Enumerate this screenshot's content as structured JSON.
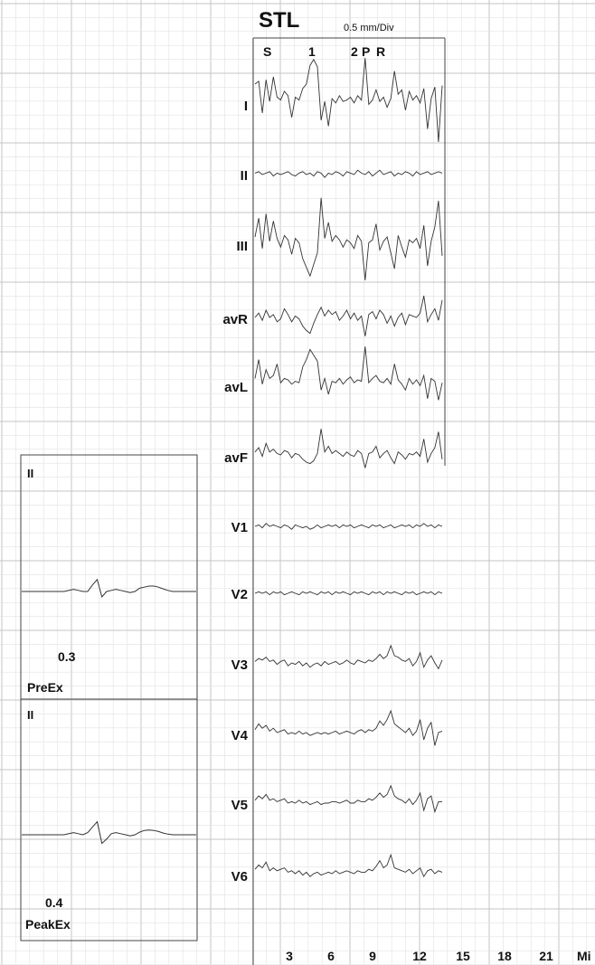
{
  "chart_data": {
    "type": "line",
    "title": "STL",
    "scale_label": "0.5 mm/Div",
    "event_markers": [
      "S",
      "1",
      "2",
      "P",
      "R"
    ],
    "x_ticks": [
      "3",
      "6",
      "9",
      "12",
      "15",
      "18",
      "21"
    ],
    "x_unit": "Mi",
    "xlim": [
      0,
      25.5
    ],
    "leads": [
      {
        "name": "I",
        "values": [
          1.5,
          1.7,
          -0.5,
          1.8,
          0.3,
          2.0,
          0.6,
          0.4,
          1.0,
          0.7,
          -0.8,
          0.6,
          0.4,
          1.2,
          1.5,
          2.8,
          3.2,
          2.7,
          -1.0,
          0.3,
          -1.4,
          0.5,
          0.2,
          0.7,
          0.3,
          0.4,
          0.6,
          0.2,
          0.7,
          0.4,
          3.3,
          0.1,
          0.4,
          1.1,
          0.3,
          0.6,
          -0.1,
          0.5,
          2.4,
          0.8,
          1.1,
          -0.3,
          1.0,
          0.4,
          0.7,
          0.2,
          1.2,
          -1.6,
          0.5,
          1.3,
          -2.5,
          1.4
        ]
      },
      {
        "name": "II",
        "values": [
          0.1,
          0.2,
          0.0,
          0.1,
          0.2,
          -0.1,
          0.1,
          0.0,
          0.1,
          0.2,
          0.0,
          -0.1,
          0.1,
          0.2,
          0.0,
          0.1,
          -0.1,
          0.2,
          0.1,
          -0.2,
          0.1,
          0.0,
          0.2,
          0.1,
          -0.1,
          0.2,
          0.1,
          0.0,
          0.3,
          0.1,
          0.0,
          0.2,
          -0.1,
          0.1,
          0.3,
          0.0,
          0.1,
          0.2,
          -0.1,
          0.1,
          0.0,
          0.2,
          0.1,
          -0.1,
          0.2,
          0.0,
          0.1,
          0.2,
          0.0,
          0.1,
          0.2,
          0.1
        ]
      },
      {
        "name": "III",
        "values": [
          0.5,
          1.8,
          -0.3,
          2.1,
          0.2,
          1.6,
          0.4,
          -0.2,
          0.6,
          0.3,
          -0.7,
          0.4,
          0.1,
          -1.0,
          -1.6,
          -2.2,
          -1.4,
          -0.6,
          3.2,
          0.4,
          1.5,
          0.2,
          0.6,
          0.3,
          -0.2,
          0.3,
          0.1,
          -0.3,
          0.6,
          0.2,
          -2.5,
          0.1,
          0.3,
          1.4,
          -0.4,
          0.2,
          0.5,
          -0.6,
          -1.7,
          0.6,
          -0.2,
          -0.9,
          0.3,
          0.1,
          0.4,
          -0.3,
          1.3,
          -1.5,
          0.2,
          1.2,
          3.0,
          -0.8
        ]
      },
      {
        "name": "avR",
        "values": [
          0.0,
          0.3,
          -0.2,
          0.5,
          0.0,
          0.2,
          -0.3,
          -0.1,
          0.6,
          0.2,
          -0.3,
          0.1,
          -0.1,
          -0.6,
          -0.9,
          -1.1,
          -0.4,
          0.2,
          0.7,
          0.1,
          0.5,
          0.2,
          0.4,
          -0.2,
          0.1,
          0.5,
          -0.1,
          0.3,
          -0.2,
          0.1,
          -1.3,
          0.2,
          0.4,
          -0.1,
          0.5,
          0.2,
          -0.4,
          0.1,
          -0.6,
          0.0,
          0.3,
          -0.5,
          0.2,
          0.1,
          0.0,
          0.3,
          1.5,
          -0.3,
          0.2,
          0.6,
          -0.2,
          1.2
        ]
      },
      {
        "name": "avL",
        "values": [
          0.6,
          1.9,
          0.2,
          1.2,
          0.6,
          0.8,
          1.6,
          0.3,
          0.6,
          0.5,
          0.2,
          0.4,
          0.3,
          1.4,
          1.9,
          2.6,
          2.2,
          1.8,
          -0.2,
          0.6,
          -0.5,
          0.4,
          0.3,
          0.6,
          0.2,
          0.5,
          0.7,
          0.3,
          0.5,
          0.4,
          2.8,
          0.3,
          0.6,
          0.8,
          0.4,
          0.3,
          0.6,
          0.2,
          1.6,
          0.5,
          0.2,
          -0.2,
          0.6,
          0.2,
          0.5,
          0.1,
          0.8,
          -0.8,
          0.6,
          0.4,
          -0.9,
          0.3
        ]
      },
      {
        "name": "avF",
        "values": [
          0.2,
          0.5,
          -0.1,
          0.8,
          0.2,
          0.4,
          0.1,
          0.0,
          0.3,
          0.2,
          -0.2,
          0.1,
          0.0,
          -0.3,
          -0.5,
          -0.6,
          -0.4,
          0.1,
          1.8,
          0.2,
          0.6,
          0.1,
          0.3,
          0.1,
          -0.1,
          0.2,
          0.0,
          -0.1,
          0.3,
          0.1,
          -0.9,
          0.1,
          0.2,
          0.6,
          -0.2,
          0.1,
          0.3,
          -0.2,
          -0.6,
          0.2,
          0.0,
          -0.3,
          0.1,
          0.0,
          0.2,
          -0.1,
          1.1,
          -0.5,
          0.1,
          0.5,
          1.6,
          -0.3
        ]
      },
      {
        "name": "V1",
        "values": [
          0.0,
          0.1,
          -0.1,
          0.2,
          0.0,
          0.1,
          0.0,
          -0.1,
          0.1,
          0.0,
          -0.2,
          0.1,
          0.0,
          -0.1,
          0.0,
          -0.2,
          -0.1,
          0.1,
          -0.1,
          0.0,
          0.1,
          0.0,
          0.1,
          -0.1,
          0.1,
          0.0,
          0.1,
          -0.1,
          0.0,
          0.1,
          0.0,
          -0.1,
          0.1,
          0.0,
          0.1,
          -0.1,
          0.0,
          0.1,
          -0.1,
          0.0,
          0.1,
          0.0,
          0.1,
          -0.1,
          0.1,
          0.0,
          0.2,
          0.0,
          0.1,
          -0.1,
          0.1,
          0.0
        ]
      },
      {
        "name": "V2",
        "values": [
          0.0,
          0.1,
          0.0,
          0.1,
          -0.1,
          0.1,
          0.0,
          0.1,
          -0.1,
          0.0,
          0.1,
          0.0,
          -0.1,
          0.1,
          0.0,
          0.1,
          0.0,
          -0.1,
          0.1,
          0.0,
          0.1,
          -0.1,
          0.1,
          0.0,
          0.1,
          0.0,
          -0.1,
          0.1,
          0.0,
          0.1,
          0.0,
          -0.1,
          0.1,
          0.0,
          0.1,
          -0.1,
          0.1,
          0.0,
          0.1,
          0.0,
          -0.1,
          0.1,
          0.0,
          0.1,
          -0.1,
          0.0,
          0.1,
          0.0,
          0.1,
          -0.1,
          0.1,
          0.0
        ]
      },
      {
        "name": "V3",
        "values": [
          0.1,
          0.3,
          0.2,
          0.4,
          0.1,
          0.2,
          -0.1,
          0.1,
          0.2,
          -0.2,
          0.0,
          -0.1,
          0.1,
          -0.2,
          0.0,
          -0.3,
          -0.1,
          0.0,
          -0.2,
          0.1,
          -0.1,
          0.0,
          0.1,
          -0.1,
          0.0,
          0.2,
          0.0,
          -0.1,
          0.2,
          0.1,
          0.0,
          0.2,
          0.1,
          0.3,
          0.6,
          0.3,
          0.5,
          1.2,
          0.5,
          0.4,
          0.2,
          0.1,
          0.3,
          -0.2,
          0.1,
          0.7,
          -0.3,
          0.2,
          0.5,
          0.0,
          -0.4,
          0.2
        ]
      },
      {
        "name": "V4",
        "values": [
          0.2,
          0.6,
          0.3,
          0.5,
          0.1,
          0.3,
          0.0,
          0.1,
          0.2,
          -0.1,
          0.0,
          -0.1,
          0.1,
          -0.1,
          0.0,
          -0.2,
          -0.1,
          0.0,
          -0.1,
          0.0,
          -0.1,
          0.0,
          0.1,
          -0.1,
          0.0,
          0.1,
          0.0,
          -0.1,
          0.1,
          0.2,
          0.0,
          0.2,
          0.1,
          0.3,
          0.8,
          0.5,
          0.9,
          1.5,
          0.6,
          0.4,
          0.2,
          0.0,
          0.3,
          -0.2,
          0.1,
          0.9,
          -0.5,
          0.3,
          0.7,
          -0.9,
          0.0,
          0.1
        ]
      },
      {
        "name": "V5",
        "values": [
          0.2,
          0.5,
          0.3,
          0.6,
          0.2,
          0.3,
          0.1,
          0.2,
          0.3,
          0.0,
          0.1,
          0.0,
          0.2,
          0.0,
          0.1,
          -0.1,
          0.0,
          0.1,
          -0.1,
          0.0,
          0.0,
          0.1,
          0.1,
          0.0,
          0.1,
          0.2,
          0.0,
          0.0,
          0.2,
          0.1,
          0.1,
          0.3,
          0.2,
          0.4,
          0.7,
          0.4,
          0.6,
          1.2,
          0.5,
          0.3,
          0.2,
          0.0,
          0.3,
          -0.1,
          0.2,
          0.7,
          -0.5,
          0.3,
          0.5,
          -0.6,
          0.1,
          0.1
        ]
      },
      {
        "name": "V6",
        "values": [
          0.3,
          0.6,
          0.4,
          0.8,
          0.2,
          0.4,
          0.2,
          0.3,
          0.4,
          0.1,
          0.2,
          0.0,
          0.2,
          -0.1,
          0.1,
          -0.2,
          0.0,
          0.1,
          -0.1,
          0.0,
          0.1,
          0.0,
          0.2,
          0.0,
          0.1,
          0.2,
          0.1,
          0.0,
          0.2,
          0.1,
          0.1,
          0.3,
          0.2,
          0.5,
          0.9,
          0.4,
          0.6,
          1.3,
          0.4,
          0.3,
          0.2,
          0.1,
          0.3,
          0.0,
          0.2,
          0.4,
          -0.2,
          0.2,
          0.3,
          0.0,
          0.2,
          0.1
        ]
      }
    ],
    "grid": true
  },
  "insets": [
    {
      "lead": "II",
      "value": "0.3",
      "label": "PreEx",
      "beat": [
        0,
        0,
        0,
        0,
        0,
        0,
        0,
        0,
        0,
        0,
        0.05,
        0.1,
        0.05,
        0,
        0,
        0.3,
        0.55,
        -0.25,
        0,
        0.05,
        0.1,
        0.05,
        0,
        -0.05,
        0,
        0.15,
        0.2,
        0.25,
        0.25,
        0.2,
        0.12,
        0.05,
        0,
        0,
        0,
        0,
        0,
        0
      ]
    },
    {
      "lead": "II",
      "value": "0.4",
      "label": "PeakEx",
      "beat": [
        0,
        0,
        0,
        0,
        0,
        0,
        0,
        0,
        0,
        0,
        0.05,
        0.1,
        0.05,
        0,
        0.1,
        0.35,
        0.6,
        -0.4,
        -0.2,
        0.05,
        0.1,
        0.05,
        0,
        -0.05,
        0,
        0.12,
        0.2,
        0.22,
        0.2,
        0.15,
        0.08,
        0.03,
        0,
        0,
        0,
        0,
        0,
        0
      ]
    }
  ],
  "colors": {
    "grid_minor": "#e2e2e2",
    "grid_major": "#c4c4c4",
    "trace": "#333333",
    "frame": "#444444"
  }
}
